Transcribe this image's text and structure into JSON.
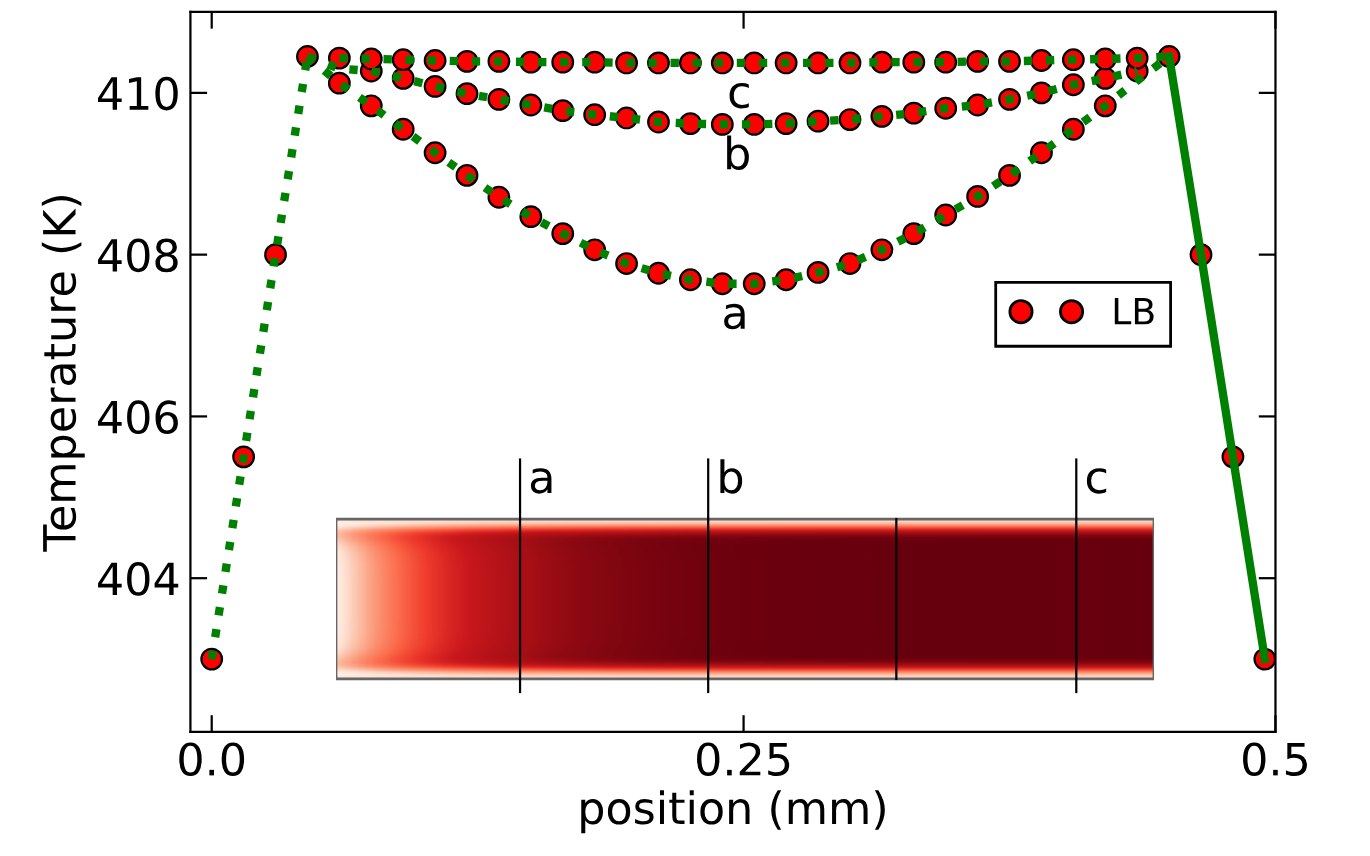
{
  "chart_data": {
    "type": "scatter",
    "xlabel": "position (mm)",
    "ylabel": "Temperature (K)",
    "xlim": [
      -0.01,
      0.5
    ],
    "ylim": [
      402.1,
      411.0
    ],
    "xticks": [
      {
        "value": 0,
        "label": "0.0"
      },
      0.25,
      {
        "value": 0.5,
        "label": "0.5"
      }
    ],
    "yticks": [
      404,
      406,
      408,
      410
    ],
    "grid": false,
    "legend": "right",
    "annotations": [
      {
        "text": "a",
        "x": 0.246,
        "y": 407.64
      },
      {
        "text": "b",
        "x": 0.247,
        "y": 409.61
      },
      {
        "text": "c",
        "x": 0.248,
        "y": 410.37
      },
      "a",
      "b",
      "c"
    ],
    "series": [
      {
        "name": "LB",
        "marker": "circle",
        "color": "#ff0000",
        "x": [
          0,
          0.015,
          0.03,
          0.045,
          0.45,
          0.465,
          0.48,
          0.495
        ],
        "values": [
          403.0,
          405.5,
          408.0,
          410.45,
          410.45,
          408.0,
          405.5,
          403.0
        ]
      },
      {
        "marker": "circle",
        "color": "#ff0000",
        "x": [
          0.06,
          0.075,
          0.09,
          0.105,
          0.12,
          0.135,
          0.15,
          0.165,
          0.18,
          0.195,
          0.21,
          0.225,
          0.24,
          0.255,
          0.27,
          0.285,
          0.3,
          0.315,
          0.33,
          0.345,
          0.36,
          0.375,
          0.39,
          0.405,
          0.42
        ],
        "values": [
          410.12,
          409.84,
          409.55,
          409.26,
          408.98,
          408.71,
          408.47,
          408.26,
          408.06,
          407.89,
          407.77,
          407.69,
          407.64,
          407.64,
          407.69,
          407.78,
          407.89,
          408.06,
          408.26,
          408.49,
          408.72,
          408.98,
          409.26,
          409.55,
          409.84
        ]
      },
      {
        "marker": "circle",
        "color": "#ff0000",
        "x": [
          0.075,
          0.09,
          0.105,
          0.12,
          0.135,
          0.15,
          0.165,
          0.18,
          0.195,
          0.21,
          0.225,
          0.24,
          0.255,
          0.27,
          0.285,
          0.3,
          0.315,
          0.33,
          0.345,
          0.36,
          0.375,
          0.39,
          0.405,
          0.42,
          0.435
        ],
        "values": [
          410.27,
          410.18,
          410.08,
          409.99,
          409.92,
          409.85,
          409.78,
          409.73,
          409.69,
          409.64,
          409.62,
          409.61,
          409.61,
          409.62,
          409.65,
          409.67,
          409.71,
          409.75,
          409.81,
          409.85,
          409.92,
          410.0,
          410.1,
          410.18,
          410.27
        ]
      },
      {
        "marker": "circle",
        "color": "#ff0000",
        "x": [
          0.06,
          0.075,
          0.09,
          0.105,
          0.12,
          0.135,
          0.15,
          0.165,
          0.18,
          0.195,
          0.21,
          0.225,
          0.24,
          0.255,
          0.27,
          0.285,
          0.3,
          0.315,
          0.33,
          0.345,
          0.36,
          0.375,
          0.39,
          0.405,
          0.42,
          0.435
        ],
        "values": [
          410.43,
          410.42,
          410.41,
          410.4,
          410.39,
          410.39,
          410.38,
          410.38,
          410.38,
          410.37,
          410.37,
          410.37,
          410.37,
          410.37,
          410.37,
          410.37,
          410.37,
          410.38,
          410.38,
          410.38,
          410.39,
          410.39,
          410.4,
          410.41,
          410.42,
          410.43
        ]
      },
      {
        "type": "line",
        "marker": "none",
        "color": "#008000",
        "line_style": "dotted",
        "x": [
          0,
          0.015,
          0.03,
          0.045
        ],
        "values": [
          403.0,
          405.5,
          408.0,
          410.45
        ]
      },
      {
        "type": "line",
        "marker": "none",
        "color": "#008000",
        "line_style": "solid",
        "x": [
          0.45,
          0.465,
          0.48,
          0.495
        ],
        "values": [
          410.45,
          408.0,
          405.5,
          403.0
        ]
      },
      {
        "type": "line",
        "marker": "none",
        "color": "#008000",
        "line_style": "dotted",
        "x": [
          0.045,
          0.06,
          0.075,
          0.09,
          0.105,
          0.12,
          0.135,
          0.15,
          0.165,
          0.18,
          0.195,
          0.21,
          0.225,
          0.24,
          0.255,
          0.27,
          0.285,
          0.3,
          0.315,
          0.33,
          0.345,
          0.36,
          0.375,
          0.39,
          0.405,
          0.42,
          0.435,
          0.45
        ],
        "values": [
          410.45,
          410.12,
          409.84,
          409.55,
          409.26,
          408.98,
          408.71,
          408.47,
          408.26,
          408.06,
          407.89,
          407.77,
          407.69,
          407.64,
          407.64,
          407.69,
          407.78,
          407.89,
          408.06,
          408.26,
          408.49,
          408.72,
          408.98,
          409.26,
          409.55,
          409.84,
          410.15,
          410.45
        ]
      },
      {
        "type": "line",
        "marker": "none",
        "color": "#008000",
        "line_style": "dotted",
        "x": [
          0.045,
          0.06,
          0.075,
          0.09,
          0.105,
          0.12,
          0.135,
          0.15,
          0.165,
          0.18,
          0.195,
          0.21,
          0.225,
          0.24,
          0.255,
          0.27,
          0.285,
          0.3,
          0.315,
          0.33,
          0.345,
          0.36,
          0.375,
          0.39,
          0.405,
          0.42,
          0.435
        ],
        "values": [
          410.45,
          410.3,
          410.27,
          410.18,
          410.08,
          409.99,
          409.92,
          409.85,
          409.78,
          409.73,
          409.69,
          409.64,
          409.62,
          409.61,
          409.61,
          409.62,
          409.65,
          409.67,
          409.71,
          409.75,
          409.81,
          409.85,
          409.92,
          410.0,
          410.1,
          410.18,
          410.27
        ]
      },
      {
        "type": "line",
        "marker": "none",
        "color": "#008000",
        "line_style": "dotted",
        "x": [
          0.06,
          0.075,
          0.09,
          0.105,
          0.12,
          0.135,
          0.15,
          0.165,
          0.18,
          0.195,
          0.21,
          0.225,
          0.24,
          0.255,
          0.27,
          0.285,
          0.3,
          0.315,
          0.33,
          0.345,
          0.36,
          0.375,
          0.39,
          0.405,
          0.42,
          0.435,
          0.45
        ],
        "values": [
          410.43,
          410.42,
          410.41,
          410.4,
          410.39,
          410.39,
          410.38,
          410.38,
          410.38,
          410.37,
          410.37,
          410.37,
          410.37,
          410.37,
          410.37,
          410.37,
          410.37,
          410.38,
          410.38,
          410.38,
          410.39,
          410.39,
          410.4,
          410.41,
          410.42,
          410.43,
          410.45
        ]
      }
    ]
  }
}
